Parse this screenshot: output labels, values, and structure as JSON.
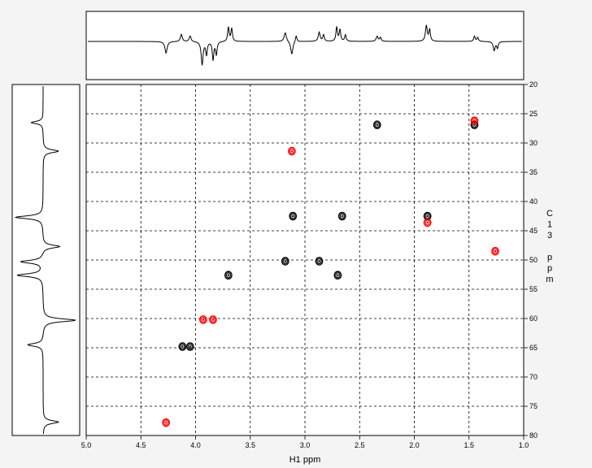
{
  "chart_data": {
    "type": "scatter",
    "title": "",
    "xlabel": "H1 ppm",
    "ylabel_chars": [
      "C",
      "1",
      "3",
      "",
      "p",
      "p",
      "m"
    ],
    "xlim": [
      5.0,
      1.0
    ],
    "ylim": [
      20,
      80
    ],
    "xticks": [
      5.0,
      4.5,
      4.0,
      3.5,
      3.0,
      2.5,
      2.0,
      1.5,
      1.0
    ],
    "xtick_labels": [
      "5.0",
      "4.5",
      "4.0",
      "3.5",
      "3.0",
      "2.5",
      "2.0",
      "1.5",
      "1.0"
    ],
    "yticks": [
      20,
      25,
      30,
      35,
      40,
      45,
      50,
      55,
      60,
      65,
      70,
      75,
      80
    ],
    "ytick_labels": [
      "20",
      "25",
      "30",
      "35",
      "40",
      "45",
      "50",
      "55",
      "60",
      "65",
      "70",
      "75",
      "80"
    ],
    "grid": true,
    "colors": {
      "positive": "#000000",
      "negative": "#ff0000"
    },
    "series": [
      {
        "sign": "positive",
        "points": [
          {
            "x": 2.34,
            "y": 26.9
          },
          {
            "x": 1.45,
            "y": 26.9
          },
          {
            "x": 3.11,
            "y": 42.5
          },
          {
            "x": 2.66,
            "y": 42.5
          },
          {
            "x": 1.88,
            "y": 42.5
          },
          {
            "x": 3.18,
            "y": 50.2
          },
          {
            "x": 2.87,
            "y": 50.2
          },
          {
            "x": 3.7,
            "y": 52.6
          },
          {
            "x": 2.7,
            "y": 52.6
          },
          {
            "x": 4.12,
            "y": 64.8
          },
          {
            "x": 4.05,
            "y": 64.8
          }
        ]
      },
      {
        "sign": "negative",
        "points": [
          {
            "x": 1.45,
            "y": 26.2
          },
          {
            "x": 3.12,
            "y": 31.4
          },
          {
            "x": 1.88,
            "y": 43.6
          },
          {
            "x": 1.26,
            "y": 48.5
          },
          {
            "x": 3.93,
            "y": 60.2
          },
          {
            "x": 3.84,
            "y": 60.2
          },
          {
            "x": 4.27,
            "y": 77.8
          }
        ]
      }
    ],
    "proton_1d": [
      {
        "x": 4.27,
        "a": -0.45,
        "w": 0.012
      },
      {
        "x": 4.13,
        "a": 0.28,
        "w": 0.01
      },
      {
        "x": 4.05,
        "a": 0.22,
        "w": 0.01
      },
      {
        "x": 3.94,
        "a": -0.9,
        "w": 0.01
      },
      {
        "x": 3.9,
        "a": -0.5,
        "w": 0.008
      },
      {
        "x": 3.84,
        "a": -0.7,
        "w": 0.008
      },
      {
        "x": 3.81,
        "a": -0.5,
        "w": 0.008
      },
      {
        "x": 3.7,
        "a": 0.55,
        "w": 0.008
      },
      {
        "x": 3.67,
        "a": 0.5,
        "w": 0.008
      },
      {
        "x": 3.18,
        "a": 0.35,
        "w": 0.012
      },
      {
        "x": 3.12,
        "a": -0.5,
        "w": 0.012
      },
      {
        "x": 3.08,
        "a": 0.25,
        "w": 0.008
      },
      {
        "x": 2.87,
        "a": 0.35,
        "w": 0.01
      },
      {
        "x": 2.83,
        "a": 0.25,
        "w": 0.008
      },
      {
        "x": 2.71,
        "a": 0.55,
        "w": 0.008
      },
      {
        "x": 2.68,
        "a": 0.45,
        "w": 0.008
      },
      {
        "x": 2.63,
        "a": 0.25,
        "w": 0.008
      },
      {
        "x": 2.34,
        "a": 0.2,
        "w": 0.01
      },
      {
        "x": 2.31,
        "a": 0.15,
        "w": 0.008
      },
      {
        "x": 1.89,
        "a": 0.6,
        "w": 0.01
      },
      {
        "x": 1.86,
        "a": 0.45,
        "w": 0.008
      },
      {
        "x": 1.45,
        "a": 0.2,
        "w": 0.008
      },
      {
        "x": 1.42,
        "a": 0.15,
        "w": 0.008
      },
      {
        "x": 1.27,
        "a": -0.35,
        "w": 0.01
      },
      {
        "x": 1.24,
        "a": -0.25,
        "w": 0.008
      }
    ],
    "carbon_1d": [
      {
        "y": 26.5,
        "a": 0.35,
        "w": 0.25
      },
      {
        "y": 31.4,
        "a": -0.45,
        "w": 0.3
      },
      {
        "y": 42.7,
        "a": 0.8,
        "w": 0.3
      },
      {
        "y": 47.7,
        "a": -0.5,
        "w": 0.3
      },
      {
        "y": 50.3,
        "a": 0.65,
        "w": 0.3
      },
      {
        "y": 52.6,
        "a": 0.75,
        "w": 0.3
      },
      {
        "y": 60.3,
        "a": -0.95,
        "w": 0.3
      },
      {
        "y": 64.5,
        "a": 0.45,
        "w": 0.3
      },
      {
        "y": 77.7,
        "a": -0.45,
        "w": 0.3
      }
    ]
  }
}
